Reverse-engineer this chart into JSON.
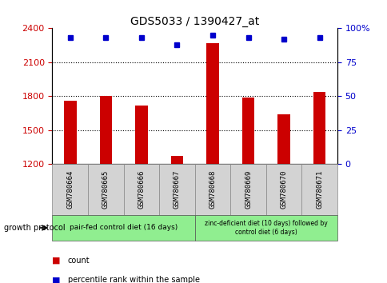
{
  "title": "GDS5033 / 1390427_at",
  "samples": [
    "GSM780664",
    "GSM780665",
    "GSM780666",
    "GSM780667",
    "GSM780668",
    "GSM780669",
    "GSM780670",
    "GSM780671"
  ],
  "counts": [
    1760,
    1800,
    1720,
    1270,
    2270,
    1790,
    1640,
    1840
  ],
  "percentiles": [
    93,
    93,
    93,
    88,
    95,
    93,
    92,
    93
  ],
  "ylim_left": [
    1200,
    2400
  ],
  "ylim_right": [
    0,
    100
  ],
  "yticks_left": [
    1200,
    1500,
    1800,
    2100,
    2400
  ],
  "yticks_right": [
    0,
    25,
    50,
    75,
    100
  ],
  "ytick_right_labels": [
    "0",
    "25",
    "50",
    "75",
    "100%"
  ],
  "bar_color": "#cc0000",
  "dot_color": "#0000cc",
  "bar_width": 0.35,
  "group1_label": "pair-fed control diet (16 days)",
  "group2_label": "zinc-deficient diet (10 days) followed by\ncontrol diet (6 days)",
  "group1_color": "#90EE90",
  "group2_color": "#90EE90",
  "xlabel_label": "growth protocol",
  "legend_count_color": "#cc0000",
  "legend_dot_color": "#0000cc",
  "tick_label_color_left": "#cc0000",
  "tick_label_color_right": "#0000cc",
  "xticklabel_bg": "#d3d3d3",
  "dotted_lines": [
    1500,
    1800,
    2100
  ],
  "fig_width": 4.85,
  "fig_height": 3.54,
  "fig_dpi": 100
}
